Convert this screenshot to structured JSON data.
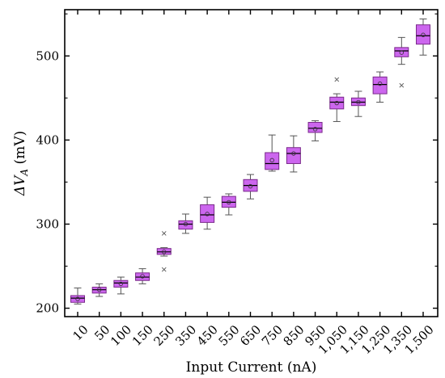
{
  "chart_data": {
    "type": "box",
    "title": "",
    "xlabel": "Input Current (nA)",
    "ylabel_main": "ΔV",
    "ylabel_sub": "A",
    "ylabel_unit": " (mV)",
    "ylim": [
      190,
      555
    ],
    "yticks": [
      200,
      300,
      400,
      500
    ],
    "ytick_labels": [
      "200",
      "300",
      "400",
      "500"
    ],
    "grid": false,
    "legend": "none",
    "colors": {
      "box_fill": "#cc66ee",
      "box_stroke": "#7a2a8a",
      "whisker": "#555555",
      "median": "#000000",
      "mean_marker": "#333333",
      "outlier": "#555555"
    },
    "categories": [
      "10",
      "50",
      "100",
      "150",
      "250",
      "350",
      "450",
      "550",
      "650",
      "750",
      "850",
      "950",
      "1,050",
      "1,150",
      "1,250",
      "1,350",
      "1,500"
    ],
    "boxes": [
      {
        "min": 205,
        "q1": 207,
        "median": 212,
        "q3": 215,
        "max": 224,
        "mean": 211,
        "outliers": []
      },
      {
        "min": 214,
        "q1": 218,
        "median": 222,
        "q3": 225,
        "max": 229,
        "mean": 222,
        "outliers": []
      },
      {
        "min": 217,
        "q1": 225,
        "median": 230,
        "q3": 233,
        "max": 237,
        "mean": 229,
        "outliers": []
      },
      {
        "min": 229,
        "q1": 233,
        "median": 237,
        "q3": 242,
        "max": 247,
        "mean": 238,
        "outliers": []
      },
      {
        "min": 262,
        "q1": 264,
        "median": 267,
        "q3": 271,
        "max": 272,
        "mean": 267,
        "outliers": [
          289,
          246
        ]
      },
      {
        "min": 289,
        "q1": 294,
        "median": 300,
        "q3": 304,
        "max": 312,
        "mean": 300,
        "outliers": []
      },
      {
        "min": 294,
        "q1": 302,
        "median": 311,
        "q3": 323,
        "max": 332,
        "mean": 312,
        "outliers": []
      },
      {
        "min": 311,
        "q1": 320,
        "median": 326,
        "q3": 333,
        "max": 336,
        "mean": 326,
        "outliers": []
      },
      {
        "min": 330,
        "q1": 339,
        "median": 346,
        "q3": 353,
        "max": 359,
        "mean": 345,
        "outliers": []
      },
      {
        "min": 363,
        "q1": 365,
        "median": 372,
        "q3": 385,
        "max": 406,
        "mean": 376,
        "outliers": []
      },
      {
        "min": 362,
        "q1": 372,
        "median": 384,
        "q3": 391,
        "max": 405,
        "mean": 384,
        "outliers": []
      },
      {
        "min": 399,
        "q1": 409,
        "median": 414,
        "q3": 421,
        "max": 423,
        "mean": 413,
        "outliers": []
      },
      {
        "min": 422,
        "q1": 437,
        "median": 445,
        "q3": 451,
        "max": 455,
        "mean": 444,
        "outliers": [
          472
        ]
      },
      {
        "min": 428,
        "q1": 441,
        "median": 445,
        "q3": 450,
        "max": 458,
        "mean": 445,
        "outliers": []
      },
      {
        "min": 445,
        "q1": 455,
        "median": 466,
        "q3": 475,
        "max": 481,
        "mean": 467,
        "outliers": []
      },
      {
        "min": 490,
        "q1": 499,
        "median": 506,
        "q3": 510,
        "max": 522,
        "mean": 504,
        "outliers": [
          465
        ]
      },
      {
        "min": 501,
        "q1": 514,
        "median": 524,
        "q3": 537,
        "max": 544,
        "mean": 525,
        "outliers": []
      }
    ]
  }
}
